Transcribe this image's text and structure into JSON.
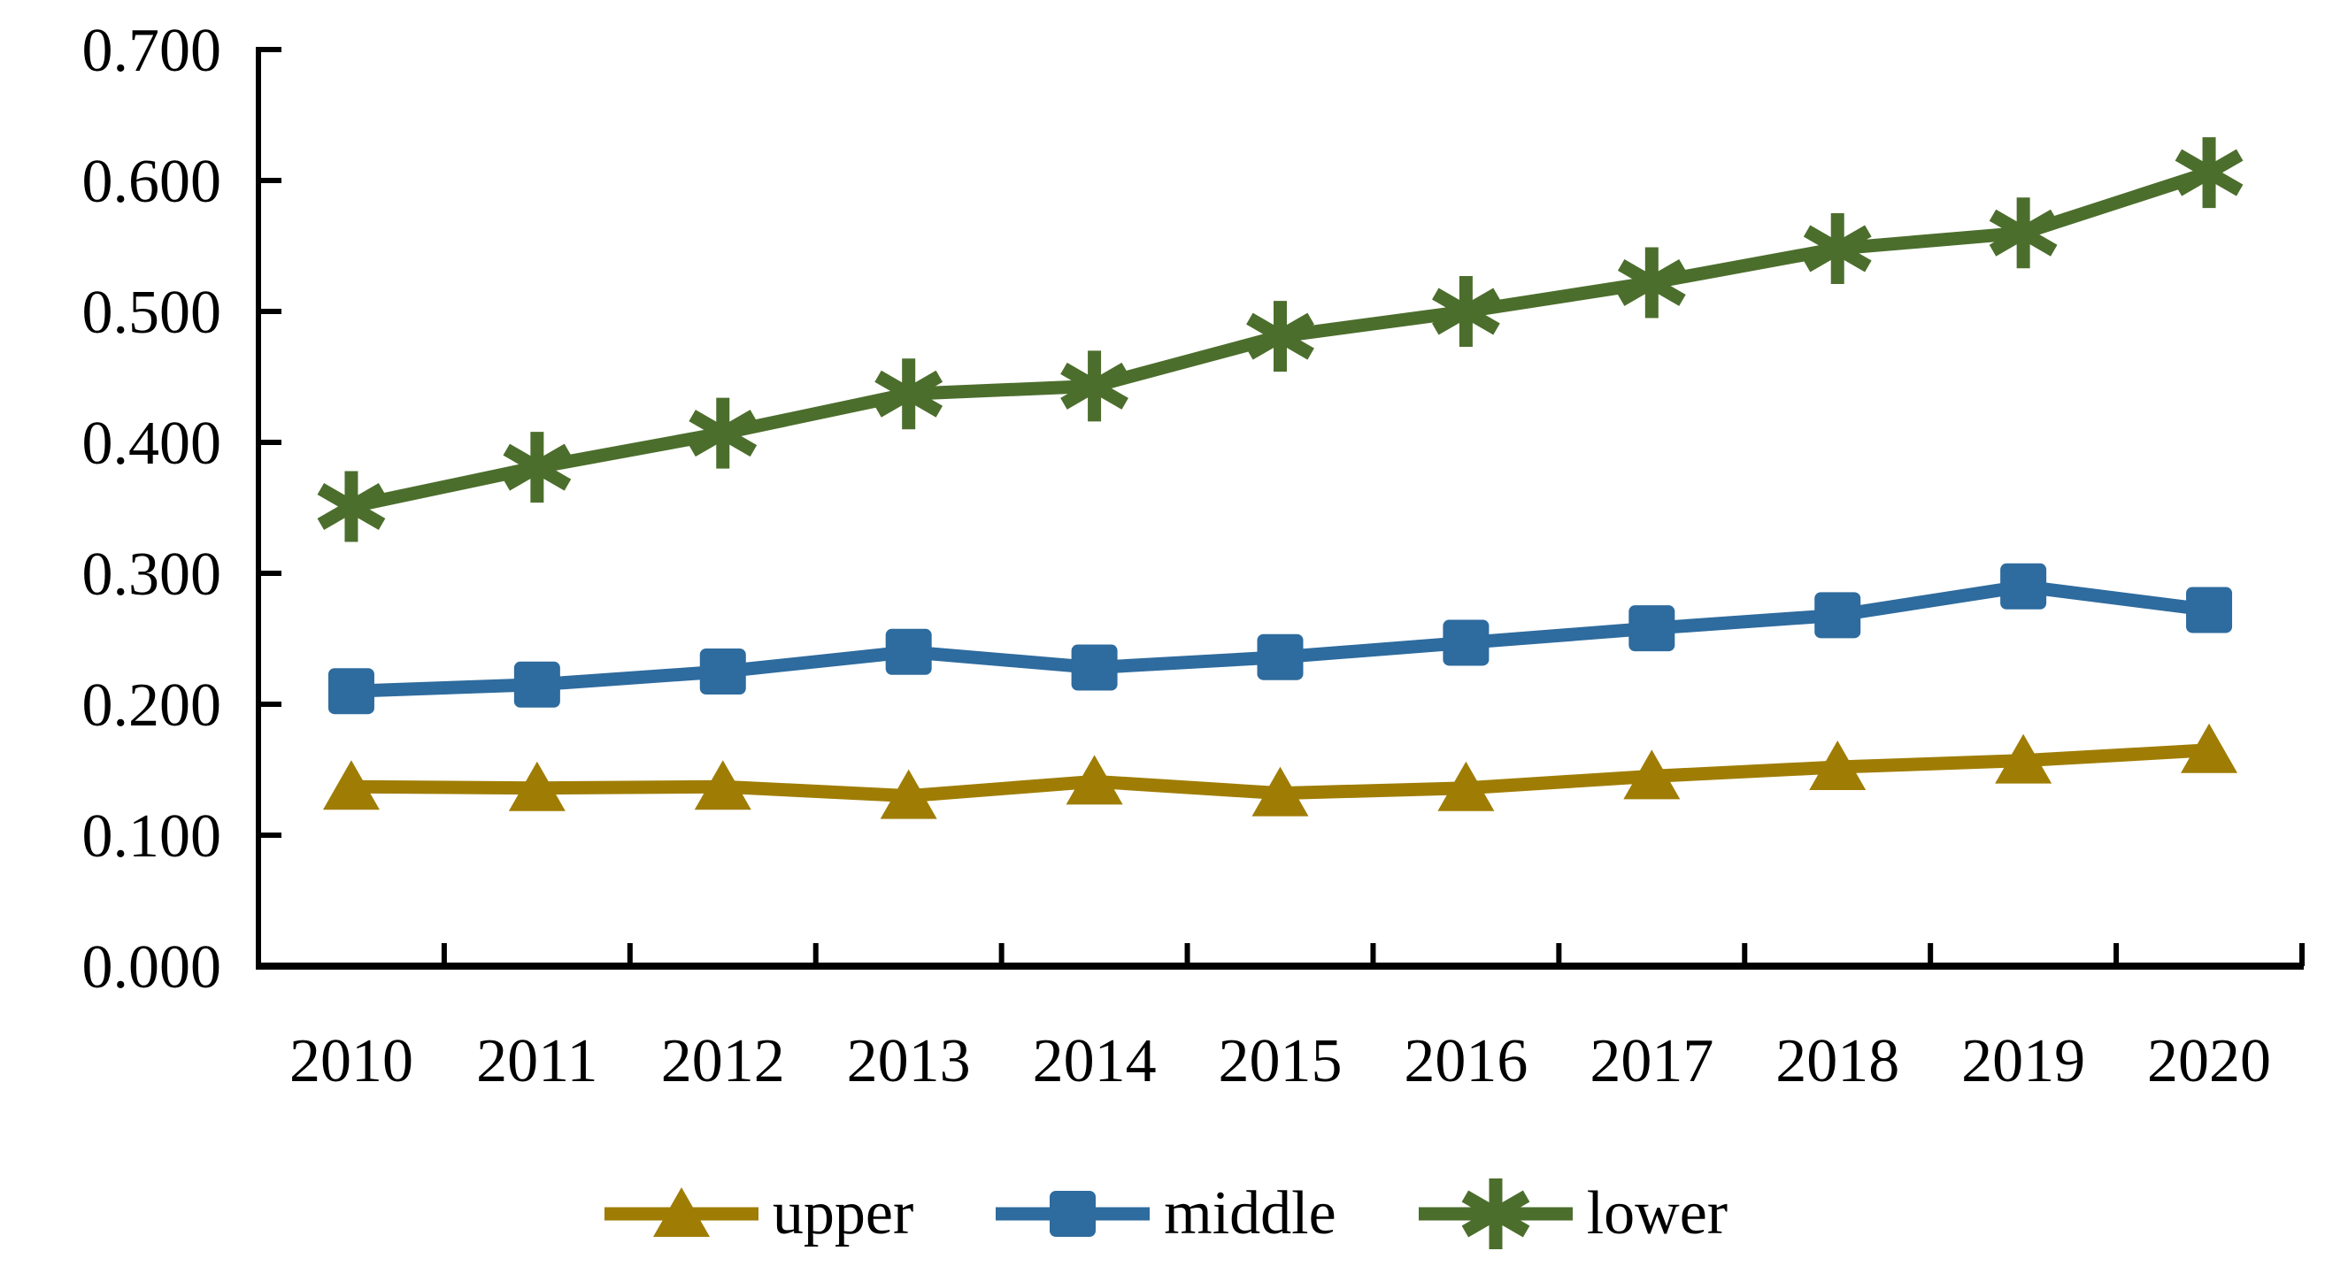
{
  "chart_data": {
    "type": "line",
    "title": "",
    "xlabel": "",
    "ylabel": "",
    "categories": [
      "2010",
      "2011",
      "2012",
      "2013",
      "2014",
      "2015",
      "2016",
      "2017",
      "2018",
      "2019",
      "2020"
    ],
    "series": [
      {
        "name": "upper",
        "color": "#9F7D05",
        "marker": "triangle",
        "values": [
          0.137,
          0.136,
          0.137,
          0.13,
          0.141,
          0.132,
          0.136,
          0.145,
          0.152,
          0.157,
          0.165
        ]
      },
      {
        "name": "middle",
        "color": "#2E6B9E",
        "marker": "square",
        "values": [
          0.21,
          0.215,
          0.225,
          0.24,
          0.228,
          0.236,
          0.247,
          0.258,
          0.268,
          0.29,
          0.272
        ]
      },
      {
        "name": "lower",
        "color": "#4C6E2D",
        "marker": "asterisk",
        "values": [
          0.351,
          0.381,
          0.407,
          0.437,
          0.443,
          0.481,
          0.5,
          0.522,
          0.548,
          0.56,
          0.606
        ]
      }
    ],
    "ylim": [
      0.0,
      0.7
    ],
    "y_tick_labels": [
      "0.000",
      "0.100",
      "0.200",
      "0.300",
      "0.400",
      "0.500",
      "0.600",
      "0.700"
    ],
    "x_tick_labels": [
      "2010",
      "2011",
      "2012",
      "2013",
      "2014",
      "2015",
      "2016",
      "2017",
      "2018",
      "2019",
      "2020"
    ],
    "grid": false,
    "legend_position": "bottom-center",
    "tick_style": "inside",
    "axis_color": "#000000",
    "background_color": "#FFFFFF"
  }
}
